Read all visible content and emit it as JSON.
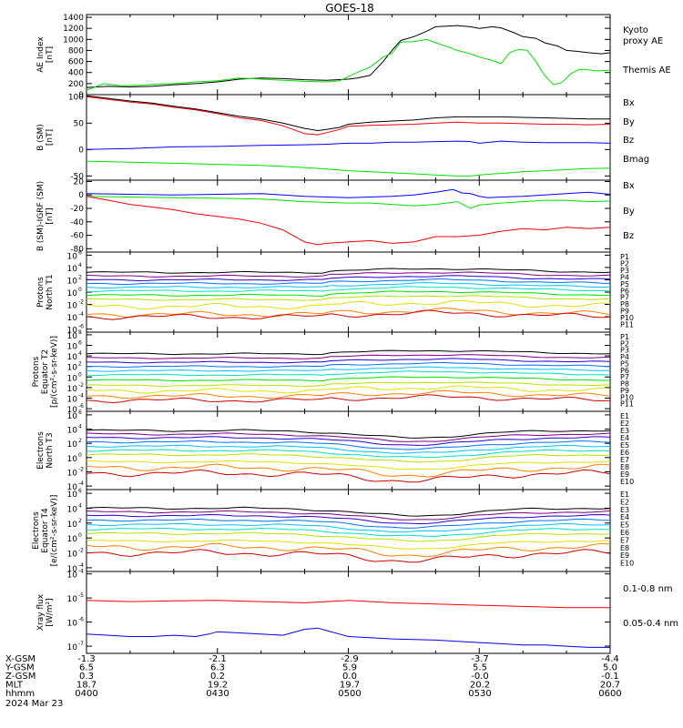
{
  "title": "GOES-18",
  "date": "2024 Mar 23",
  "colors": {
    "black": "#000000",
    "red": "#ff0000",
    "green": "#00e000",
    "blue": "#0000ff",
    "ramp": [
      "#000000",
      "#7a0088",
      "#2a00d0",
      "#0070ff",
      "#00c0ff",
      "#00e0c0",
      "#00e000",
      "#b8e000",
      "#e0e000",
      "#ff8000",
      "#d00000"
    ]
  },
  "chart_data": [
    {
      "type": "line",
      "id": "ae",
      "ylabel": [
        "AE Index",
        "[nT]"
      ],
      "yticks": [
        "1400",
        "1200",
        "1000",
        "800",
        "600",
        "400",
        "200",
        "0"
      ],
      "ylim": [
        0,
        1450
      ],
      "xlim": [
        0,
        120
      ],
      "series": [
        {
          "name": "Themis AE",
          "color": "#000000",
          "x": [
            0,
            5,
            10,
            15,
            20,
            25,
            30,
            35,
            40,
            45,
            50,
            55,
            60,
            62,
            65,
            68,
            70,
            72,
            75,
            78,
            80,
            85,
            88,
            90,
            93,
            95,
            98,
            100,
            103,
            105,
            108,
            110,
            113,
            115,
            118,
            120
          ],
          "y": [
            130,
            150,
            140,
            150,
            180,
            200,
            230,
            280,
            300,
            290,
            270,
            260,
            280,
            300,
            350,
            600,
            800,
            980,
            1050,
            1150,
            1230,
            1250,
            1230,
            1200,
            1230,
            1210,
            1120,
            1050,
            1020,
            940,
            880,
            800,
            780,
            760,
            740,
            760
          ]
        },
        {
          "name": "Kyoto proxy AE",
          "color": "#00e000",
          "x": [
            0,
            4,
            8,
            12,
            16,
            20,
            25,
            30,
            35,
            40,
            45,
            50,
            55,
            58,
            62,
            65,
            68,
            70,
            72,
            75,
            78,
            80,
            83,
            85,
            88,
            90,
            93,
            95,
            97,
            99,
            101,
            103,
            105,
            107,
            109,
            111,
            113,
            115,
            117,
            120
          ],
          "y": [
            80,
            200,
            160,
            170,
            190,
            200,
            230,
            250,
            300,
            280,
            260,
            240,
            230,
            250,
            400,
            500,
            680,
            750,
            950,
            960,
            1000,
            940,
            860,
            800,
            740,
            680,
            620,
            560,
            760,
            820,
            800,
            600,
            350,
            180,
            220,
            380,
            460,
            450,
            430,
            440
          ]
        }
      ],
      "labels": [
        {
          "text": "Kyoto",
          "color": "#00e000"
        },
        {
          "text": "proxy AE",
          "color": "#00e000"
        },
        {
          "text": "Themis AE",
          "color": "#000000"
        }
      ]
    },
    {
      "type": "line",
      "id": "bsm",
      "ylabel": [
        "B (SM)",
        "[nT]"
      ],
      "yticks": [
        "100",
        "50",
        "0",
        "-50"
      ],
      "ylim": [
        -58,
        104
      ],
      "xlim": [
        0,
        120
      ],
      "series": [
        {
          "name": "Bx",
          "color": "#0000ff",
          "x": [
            0,
            10,
            20,
            30,
            40,
            50,
            55,
            60,
            65,
            70,
            75,
            80,
            85,
            88,
            90,
            95,
            100,
            105,
            110,
            115,
            120
          ],
          "y": [
            0,
            2,
            5,
            6,
            8,
            9,
            10,
            12,
            12,
            14,
            14,
            15,
            16,
            15,
            12,
            16,
            14,
            13,
            13,
            13,
            12
          ]
        },
        {
          "name": "By",
          "color": "#00e000",
          "x": [
            0,
            10,
            20,
            30,
            40,
            45,
            50,
            55,
            60,
            65,
            70,
            75,
            80,
            85,
            88,
            90,
            95,
            100,
            105,
            110,
            115,
            120
          ],
          "y": [
            -22,
            -24,
            -26,
            -28,
            -30,
            -32,
            -34,
            -37,
            -40,
            -42,
            -44,
            -46,
            -48,
            -50,
            -50,
            -48,
            -45,
            -42,
            -40,
            -38,
            -36,
            -35
          ]
        },
        {
          "name": "Bz",
          "color": "#ff0000",
          "x": [
            0,
            5,
            10,
            15,
            20,
            25,
            30,
            35,
            40,
            45,
            50,
            53,
            55,
            58,
            60,
            65,
            70,
            75,
            80,
            85,
            90,
            95,
            100,
            105,
            110,
            115,
            120
          ],
          "y": [
            100,
            95,
            90,
            86,
            80,
            75,
            68,
            60,
            55,
            45,
            30,
            28,
            32,
            38,
            44,
            46,
            47,
            48,
            50,
            52,
            50,
            50,
            49,
            48,
            48,
            47,
            48
          ]
        },
        {
          "name": "Bmag",
          "color": "#000000",
          "x": [
            0,
            5,
            10,
            15,
            20,
            25,
            30,
            35,
            40,
            45,
            50,
            53,
            55,
            58,
            60,
            65,
            70,
            75,
            80,
            85,
            90,
            95,
            100,
            105,
            110,
            115,
            120
          ],
          "y": [
            102,
            97,
            92,
            88,
            82,
            77,
            70,
            63,
            58,
            50,
            40,
            36,
            38,
            42,
            48,
            52,
            54,
            56,
            60,
            62,
            62,
            62,
            61,
            60,
            59,
            58,
            58
          ]
        }
      ],
      "labels": [
        {
          "text": "Bx",
          "color": "#0000ff"
        },
        {
          "text": "By",
          "color": "#00e000"
        },
        {
          "text": "Bz",
          "color": "#ff0000"
        },
        {
          "text": "Bmag",
          "color": "#000000"
        }
      ]
    },
    {
      "type": "line",
      "id": "bigrf",
      "ylabel": [
        "B (SM)-IGRF (SM)",
        "[nT]"
      ],
      "yticks": [
        "20",
        "0",
        "-20",
        "-40",
        "-60",
        "-80"
      ],
      "ylim": [
        -85,
        22
      ],
      "xlim": [
        0,
        120
      ],
      "series": [
        {
          "name": "Bx",
          "color": "#0000ff",
          "x": [
            0,
            10,
            20,
            30,
            40,
            45,
            50,
            55,
            60,
            65,
            70,
            75,
            80,
            82,
            84,
            86,
            88,
            90,
            92,
            95,
            100,
            105,
            110,
            115,
            120
          ],
          "y": [
            2,
            1,
            0,
            1,
            2,
            0,
            -2,
            -3,
            -4,
            -3,
            -2,
            0,
            4,
            6,
            8,
            3,
            2,
            -2,
            -4,
            -3,
            -2,
            0,
            2,
            4,
            1
          ]
        },
        {
          "name": "By",
          "color": "#00e000",
          "x": [
            0,
            10,
            20,
            30,
            40,
            45,
            50,
            55,
            60,
            65,
            70,
            75,
            80,
            85,
            88,
            90,
            95,
            100,
            105,
            110,
            115,
            120
          ],
          "y": [
            -2,
            -3,
            -4,
            -5,
            -6,
            -8,
            -10,
            -11,
            -12,
            -12,
            -14,
            -16,
            -14,
            -10,
            -20,
            -15,
            -12,
            -10,
            -8,
            -8,
            -10,
            -9
          ]
        },
        {
          "name": "Bz",
          "color": "#ff0000",
          "x": [
            0,
            5,
            10,
            15,
            20,
            25,
            30,
            35,
            40,
            45,
            50,
            53,
            55,
            60,
            65,
            70,
            75,
            80,
            85,
            90,
            95,
            100,
            105,
            110,
            115,
            120
          ],
          "y": [
            -2,
            -8,
            -14,
            -18,
            -22,
            -28,
            -32,
            -36,
            -42,
            -52,
            -70,
            -74,
            -72,
            -70,
            -68,
            -72,
            -70,
            -62,
            -62,
            -60,
            -54,
            -50,
            -52,
            -48,
            -50,
            -48
          ]
        }
      ],
      "labels": [
        {
          "text": "Bx",
          "color": "#0000ff"
        },
        {
          "text": "By",
          "color": "#00e000"
        },
        {
          "text": "Bz",
          "color": "#ff0000"
        }
      ]
    },
    {
      "type": "line",
      "id": "p_north",
      "log": true,
      "ylabel": [
        "Protons",
        "North T1"
      ],
      "ylim": [
        -6.5,
        6.5
      ],
      "yticks": [
        6,
        4,
        2,
        0,
        -2,
        -4,
        -6
      ],
      "xlim": [
        0,
        120
      ],
      "labels": [
        {
          "text": "P1",
          "color": "#000000"
        },
        {
          "text": "P2",
          "color": "#7a0088"
        },
        {
          "text": "P3",
          "color": "#2a00d0"
        },
        {
          "text": "P4",
          "color": "#0070ff"
        },
        {
          "text": "P5",
          "color": "#00c0ff"
        },
        {
          "text": "P6",
          "color": "#00e0c0"
        },
        {
          "text": "P7",
          "color": "#00e000"
        },
        {
          "text": "P8",
          "color": "#b8e000"
        },
        {
          "text": "P9",
          "color": "#e0e000"
        },
        {
          "text": "P10",
          "color": "#ff8000"
        },
        {
          "text": "P11",
          "color": "#d00000"
        }
      ],
      "series_levels": [
        3.2,
        2.6,
        2.0,
        1.4,
        0.8,
        0.2,
        -0.5,
        -1.2,
        -2.3,
        -3.6,
        -4.0
      ]
    },
    {
      "type": "line",
      "id": "p_equator",
      "log": true,
      "ylabel": [
        "Protons",
        "Equator T2",
        "[p/(cm²-s-sr-keV)]"
      ],
      "ylim": [
        -6.5,
        8.5
      ],
      "yticks": [
        8,
        6,
        4,
        2,
        0,
        -2,
        -4,
        -6
      ],
      "xlim": [
        0,
        120
      ],
      "labels": [
        {
          "text": "P1",
          "color": "#000000"
        },
        {
          "text": "P2",
          "color": "#7a0088"
        },
        {
          "text": "P3",
          "color": "#2a00d0"
        },
        {
          "text": "P4",
          "color": "#0070ff"
        },
        {
          "text": "P5",
          "color": "#00c0ff"
        },
        {
          "text": "P6",
          "color": "#00e0c0"
        },
        {
          "text": "P7",
          "color": "#00e000"
        },
        {
          "text": "P8",
          "color": "#b8e000"
        },
        {
          "text": "P9",
          "color": "#e0e000"
        },
        {
          "text": "P10",
          "color": "#ff8000"
        },
        {
          "text": "P11",
          "color": "#d00000"
        }
      ],
      "series_levels": [
        4.4,
        3.6,
        2.8,
        2.0,
        1.2,
        0.4,
        -0.6,
        -1.6,
        -2.6,
        -3.6,
        -4.4
      ]
    },
    {
      "type": "line",
      "id": "e_north",
      "log": true,
      "ylabel": [
        "Electrons",
        "North T3"
      ],
      "ylim": [
        -4.5,
        6.5
      ],
      "yticks": [
        6,
        4,
        2,
        0,
        -2,
        -4
      ],
      "xlim": [
        0,
        120
      ],
      "labels": [
        {
          "text": "E1",
          "color": "#000000"
        },
        {
          "text": "E2",
          "color": "#7a0088"
        },
        {
          "text": "E3",
          "color": "#2a00d0"
        },
        {
          "text": "E4",
          "color": "#0070ff"
        },
        {
          "text": "E5",
          "color": "#00c0ff"
        },
        {
          "text": "E6",
          "color": "#00e0c0"
        },
        {
          "text": "E7",
          "color": "#b8e000"
        },
        {
          "text": "E8",
          "color": "#e0e000"
        },
        {
          "text": "E9",
          "color": "#ff8000"
        },
        {
          "text": "E10",
          "color": "#d00000"
        }
      ],
      "series_levels": [
        3.8,
        3.3,
        2.8,
        2.2,
        1.6,
        1.0,
        0.4,
        -0.6,
        -1.4,
        -2.2
      ]
    },
    {
      "type": "line",
      "id": "e_equator",
      "log": true,
      "ylabel": [
        "Electrons",
        "Equator T4",
        "[e/(cm²-s-sr-keV)]"
      ],
      "ylim": [
        -4.5,
        6.5
      ],
      "yticks": [
        6,
        4,
        2,
        0,
        -2,
        -4
      ],
      "xlim": [
        0,
        120
      ],
      "labels": [
        {
          "text": "E1",
          "color": "#000000"
        },
        {
          "text": "E2",
          "color": "#7a0088"
        },
        {
          "text": "E3",
          "color": "#2a00d0"
        },
        {
          "text": "E4",
          "color": "#0070ff"
        },
        {
          "text": "E5",
          "color": "#00c0ff"
        },
        {
          "text": "E6",
          "color": "#00e0c0"
        },
        {
          "text": "E7",
          "color": "#b8e000"
        },
        {
          "text": "E8",
          "color": "#e0e000"
        },
        {
          "text": "E9",
          "color": "#ff8000"
        },
        {
          "text": "E10",
          "color": "#d00000"
        }
      ],
      "series_levels": [
        4.0,
        3.5,
        3.0,
        2.4,
        1.8,
        1.2,
        0.6,
        -0.4,
        -1.2,
        -2.0
      ]
    },
    {
      "type": "line",
      "id": "xray",
      "log": true,
      "ylabel": [
        "Xray flux",
        "[W/m²]"
      ],
      "ylim": [
        -7.3,
        -3.9
      ],
      "yticks": [
        -4,
        -5,
        -6,
        -7
      ],
      "xlim": [
        0,
        120
      ],
      "series": [
        {
          "name": "0.1-0.8 nm",
          "color": "#ff0000",
          "x": [
            0,
            10,
            20,
            30,
            40,
            50,
            55,
            60,
            70,
            80,
            90,
            100,
            110,
            120
          ],
          "y": [
            -5.1,
            -5.15,
            -5.12,
            -5.1,
            -5.15,
            -5.2,
            -5.15,
            -5.1,
            -5.2,
            -5.25,
            -5.3,
            -5.35,
            -5.4,
            -5.4
          ]
        },
        {
          "name": "0.05-0.4 nm",
          "color": "#0000ff",
          "x": [
            0,
            5,
            10,
            15,
            20,
            25,
            28,
            30,
            35,
            40,
            45,
            50,
            53,
            55,
            58,
            60,
            65,
            70,
            80,
            90,
            95,
            100,
            105,
            110,
            115,
            120
          ],
          "y": [
            -6.5,
            -6.55,
            -6.6,
            -6.6,
            -6.55,
            -6.6,
            -6.5,
            -6.4,
            -6.45,
            -6.5,
            -6.55,
            -6.3,
            -6.25,
            -6.35,
            -6.5,
            -6.6,
            -6.65,
            -6.7,
            -6.75,
            -6.85,
            -6.9,
            -6.95,
            -6.95,
            -7.0,
            -7.05,
            -7.05
          ]
        }
      ],
      "labels": [
        {
          "text": "0.1-0.8 nm",
          "color": "#ff0000"
        },
        {
          "text": "0.05-0.4 nm",
          "color": "#0000ff"
        }
      ]
    }
  ],
  "ephemeris": {
    "rows": [
      {
        "label": "X-GSM",
        "values": [
          "-1.3",
          "-2.1",
          "-2.9",
          "-3.7",
          "-4.4"
        ]
      },
      {
        "label": "Y-GSM",
        "values": [
          "6.5",
          "6.3",
          "5.9",
          "5.5",
          "5.0"
        ]
      },
      {
        "label": "Z-GSM",
        "values": [
          "0.3",
          "0.2",
          "0.0",
          "-0.0",
          "-0.1"
        ]
      },
      {
        "label": "MLT",
        "values": [
          "18.7",
          "19.2",
          "19.7",
          "20.2",
          "20.7"
        ]
      },
      {
        "label": "hhmm",
        "values": [
          "0400",
          "0430",
          "0500",
          "0530",
          "0600"
        ]
      }
    ]
  }
}
